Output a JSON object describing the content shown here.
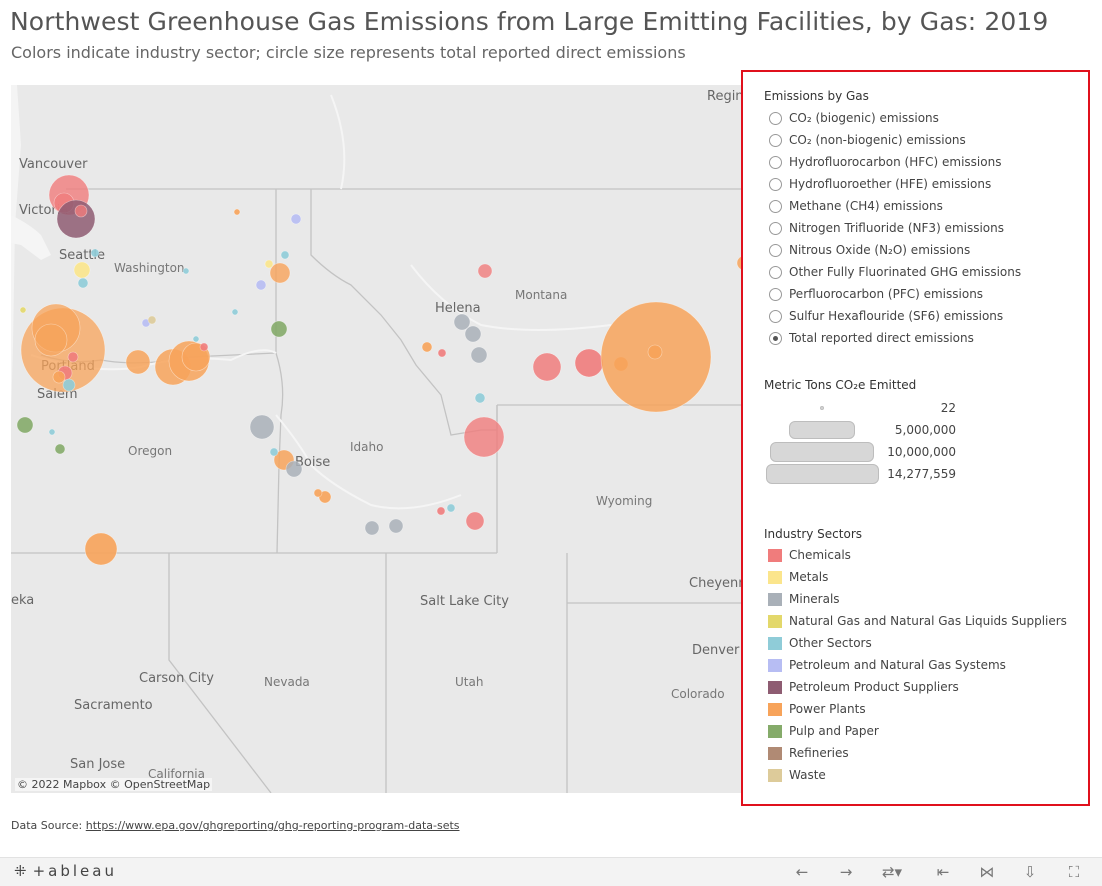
{
  "title": "Northwest Greenhouse Gas Emissions from Large Emitting Facilities, by Gas: 2019",
  "subtitle": "Colors indicate industry sector; circle size represents total reported direct emissions",
  "map": {
    "attribution": "© 2022 Mapbox  © OpenStreetMap",
    "state_labels": [
      "Washington",
      "Oregon",
      "Idaho",
      "Montana",
      "Wyoming",
      "Nevada",
      "Utah",
      "Colorado",
      "California"
    ],
    "city_labels": [
      "Vancouver",
      "Victoria",
      "Seattle",
      "Portland",
      "Salem",
      "Helena",
      "Boise",
      "Regina",
      "Salt Lake City",
      "Cheyenne",
      "Denver",
      "Carson City",
      "Sacramento",
      "San Jose",
      "eka"
    ]
  },
  "legend": {
    "gas_heading": "Emissions by Gas",
    "gas_options": [
      {
        "label": "CO₂ (biogenic) emissions",
        "checked": false
      },
      {
        "label": "CO₂ (non-biogenic) emissions",
        "checked": false
      },
      {
        "label": "Hydrofluorocarbon (HFC) emissions",
        "checked": false
      },
      {
        "label": "Hydrofluoroether (HFE) emissions",
        "checked": false
      },
      {
        "label": "Methane (CH4) emissions",
        "checked": false
      },
      {
        "label": "Nitrogen Trifluoride (NF3) emissions",
        "checked": false
      },
      {
        "label": "Nitrous Oxide (N₂O) emissions",
        "checked": false
      },
      {
        "label": "Other Fully Fluorinated GHG emissions",
        "checked": false
      },
      {
        "label": "Perfluorocarbon (PFC) emissions",
        "checked": false
      },
      {
        "label": "Sulfur Hexaflouride (SF6) emissions",
        "checked": false
      },
      {
        "label": "Total reported direct emissions",
        "checked": true
      }
    ],
    "size_heading": "Metric Tons CO₂e Emitted",
    "size_values": [
      "22",
      "5,000,000",
      "10,000,000",
      "14,277,559"
    ],
    "sector_heading": "Industry Sectors",
    "sectors": [
      {
        "label": "Chemicals",
        "color": "#f07c7c"
      },
      {
        "label": "Metals",
        "color": "#fbe58c"
      },
      {
        "label": "Minerals",
        "color": "#a9b0b8"
      },
      {
        "label": "Natural Gas and Natural Gas Liquids Suppliers",
        "color": "#e3d86b"
      },
      {
        "label": "Other Sectors",
        "color": "#8fccd8"
      },
      {
        "label": "Petroleum and Natural Gas Systems",
        "color": "#b7bdf3"
      },
      {
        "label": "Petroleum Product Suppliers",
        "color": "#8e5c72"
      },
      {
        "label": "Power Plants",
        "color": "#f7a35a"
      },
      {
        "label": "Pulp and Paper",
        "color": "#85ab6a"
      },
      {
        "label": "Refineries",
        "color": "#b08a74"
      },
      {
        "label": "Waste",
        "color": "#ddcb9a"
      }
    ]
  },
  "footer": {
    "source_prefix": "Data Source: ",
    "source_link": "https://www.epa.gov/ghgreporting/ghg-reporting-program-data-sets"
  },
  "toolbar": {
    "logo_text": "+ableau",
    "icons": [
      "undo-icon",
      "redo-icon",
      "revert-icon",
      "reset-icon",
      "share-icon",
      "download-icon",
      "fullscreen-icon"
    ]
  }
}
